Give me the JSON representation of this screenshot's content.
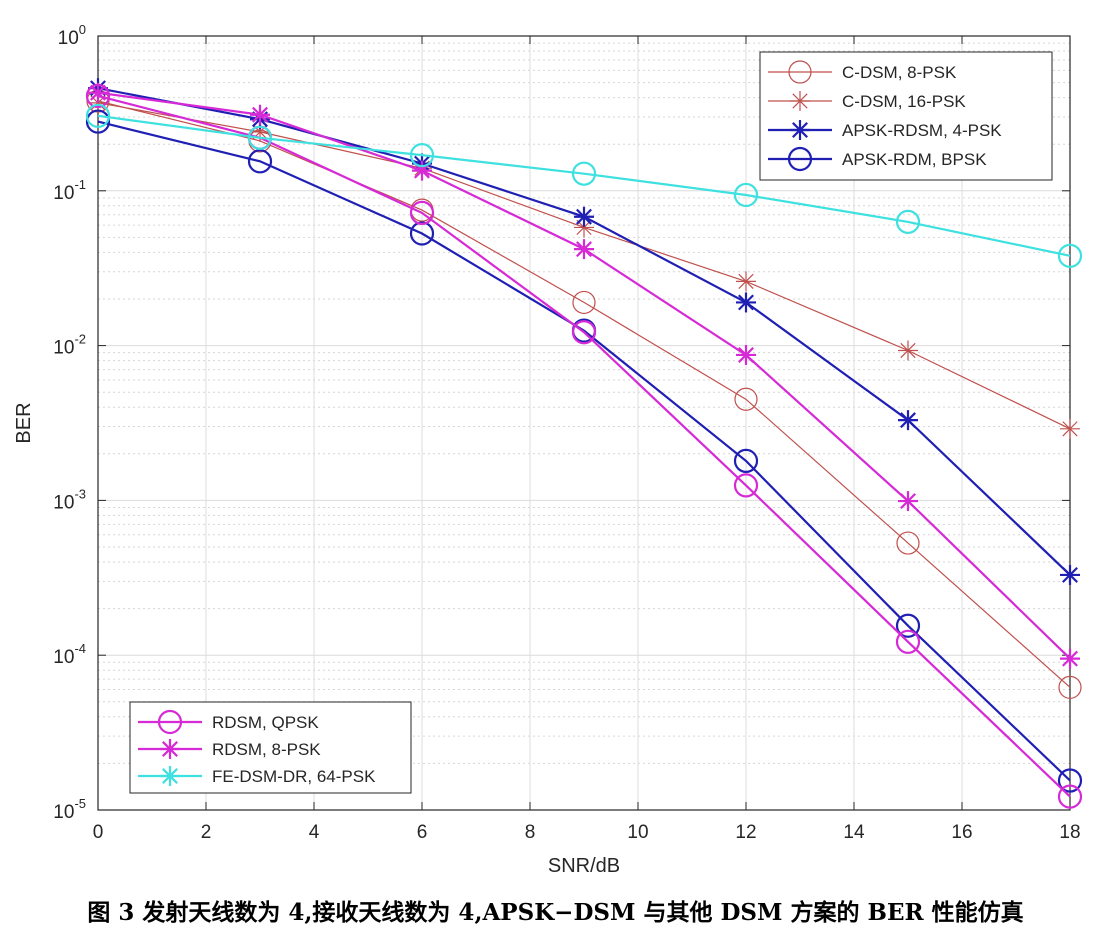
{
  "chart_data": {
    "type": "line",
    "xlabel": "SNR/dB",
    "ylabel": "BER",
    "xlim": [
      0,
      18
    ],
    "ylim": [
      1e-05,
      1
    ],
    "yscale": "log",
    "grid": true,
    "x_ticks": [
      0,
      2,
      4,
      6,
      8,
      10,
      12,
      14,
      16,
      18
    ],
    "y_ticks": [
      {
        "value": 1,
        "base": "10",
        "exp": "0"
      },
      {
        "value": 0.1,
        "base": "10",
        "exp": "-1"
      },
      {
        "value": 0.01,
        "base": "10",
        "exp": "-2"
      },
      {
        "value": 0.001,
        "base": "10",
        "exp": "-3"
      },
      {
        "value": 0.0001,
        "base": "10",
        "exp": "-4"
      },
      {
        "value": 1e-05,
        "base": "10",
        "exp": "-5"
      }
    ],
    "x": [
      0,
      3,
      6,
      9,
      12,
      15,
      18
    ],
    "series": [
      {
        "name": "C-DSM, 8-PSK",
        "color": "#c0504d",
        "marker": "circle",
        "width": "thin",
        "values": [
          0.38,
          0.21,
          0.075,
          0.019,
          0.0045,
          0.00053,
          6.2e-05
        ]
      },
      {
        "name": "C-DSM, 16-PSK",
        "color": "#c0504d",
        "marker": "star",
        "width": "thin",
        "values": [
          0.37,
          0.24,
          0.14,
          0.058,
          0.026,
          0.0093,
          0.0029
        ]
      },
      {
        "name": "APSK-RDSM, 4-PSK",
        "color": "#1f1fb4",
        "marker": "star",
        "width": "thick",
        "values": [
          0.46,
          0.29,
          0.15,
          0.068,
          0.019,
          0.0033,
          0.00033
        ]
      },
      {
        "name": "APSK-RDM, BPSK",
        "color": "#1f1fb4",
        "marker": "circle",
        "width": "thick",
        "values": [
          0.28,
          0.155,
          0.053,
          0.0125,
          0.0018,
          0.000155,
          1.55e-05
        ]
      },
      {
        "name": "RDSM, QPSK",
        "color": "#d62ad6",
        "marker": "circle",
        "width": "thick",
        "values": [
          0.41,
          0.22,
          0.072,
          0.0122,
          0.00125,
          0.000122,
          1.22e-05
        ]
      },
      {
        "name": "RDSM, 8-PSK",
        "color": "#d62ad6",
        "marker": "star",
        "width": "thick",
        "values": [
          0.43,
          0.31,
          0.135,
          0.042,
          0.0087,
          0.00099,
          9.5e-05
        ]
      },
      {
        "name": "FE-DSM-DR, 64-PSK",
        "color": "#3ee0e0",
        "marker": "circle",
        "legend_marker": "star",
        "width": "thick",
        "values": [
          0.305,
          0.22,
          0.17,
          0.129,
          0.094,
          0.063,
          0.038
        ]
      }
    ],
    "legends": [
      {
        "placement": "top-right",
        "entries": [
          0,
          1,
          2,
          3
        ]
      },
      {
        "placement": "bottom-left",
        "entries": [
          4,
          5,
          6
        ]
      }
    ]
  },
  "caption": "图 3  发射天线数为 4,接收天线数为 4,APSK−DSM 与其他 DSM 方案的 BER 性能仿真"
}
